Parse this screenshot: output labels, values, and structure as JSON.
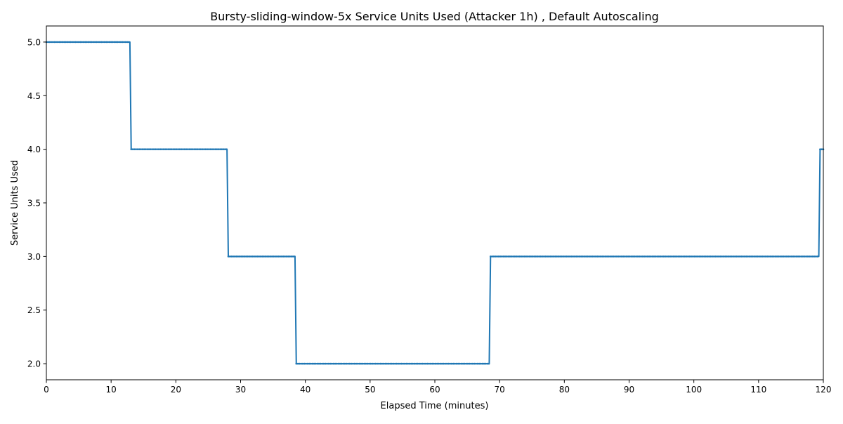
{
  "chart_data": {
    "type": "line",
    "title": "Bursty-sliding-window-5x Service Units Used (Attacker 1h) , Default Autoscaling",
    "xlabel": "Elapsed Time (minutes)",
    "ylabel": "Service Units Used",
    "xlim": [
      0,
      120
    ],
    "ylim": [
      1.85,
      5.15
    ],
    "xticks": [
      0,
      10,
      20,
      30,
      40,
      50,
      60,
      70,
      80,
      90,
      100,
      110,
      120
    ],
    "xtick_labels": [
      "0",
      "10",
      "20",
      "30",
      "40",
      "50",
      "60",
      "70",
      "80",
      "90",
      "100",
      "110",
      "120"
    ],
    "yticks": [
      2.0,
      2.5,
      3.0,
      3.5,
      4.0,
      4.5,
      5.0
    ],
    "ytick_labels": [
      "2.0",
      "2.5",
      "3.0",
      "3.5",
      "4.0",
      "4.5",
      "5.0"
    ],
    "grid": false,
    "legend": "none",
    "series": [
      {
        "color": "#1f77b4",
        "x": [
          0,
          12.9,
          13.1,
          27.9,
          28.1,
          38.4,
          38.6,
          68.4,
          68.6,
          119.3,
          119.5,
          120
        ],
        "y": [
          5,
          5,
          4,
          4,
          3,
          3,
          2,
          2,
          3,
          3,
          4,
          4
        ]
      }
    ]
  }
}
